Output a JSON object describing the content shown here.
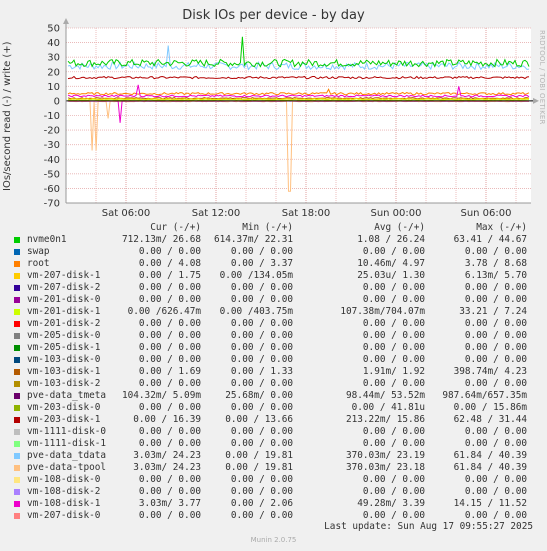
{
  "chart_data": {
    "type": "line",
    "title": "Disk IOs per device - by day",
    "ylabel": "IOs/second read (-) / write (+)",
    "ylim": [
      -70,
      50
    ],
    "yticks": [
      50,
      40,
      30,
      20,
      10,
      0,
      -10,
      -20,
      -30,
      -40,
      -50,
      -60,
      -70
    ],
    "xticks": [
      "Sat 06:00",
      "Sat 12:00",
      "Sat 18:00",
      "Sun 00:00",
      "Sun 06:00"
    ],
    "grid": true,
    "legend_placement": "bottom",
    "columns": [
      "Cur (-/+)",
      "Min (-/+)",
      "Avg (-/+)",
      "Max (-/+)"
    ],
    "series": [
      {
        "name": "nvme0n1",
        "color": "#00cc00",
        "cur": "712.13m/ 26.68",
        "min": "614.37m/ 22.31",
        "avg": "1.08 / 26.24",
        "max": "63.41 / 44.67"
      },
      {
        "name": "swap",
        "color": "#0066b3",
        "cur": "0.00 / 0.00",
        "min": "0.00 / 0.00",
        "avg": "0.00 / 0.00",
        "max": "0.00 / 0.00"
      },
      {
        "name": "root",
        "color": "#ff8000",
        "cur": "0.00 / 4.08",
        "min": "0.00 / 3.37",
        "avg": "10.46m/ 4.97",
        "max": "3.78 / 8.68"
      },
      {
        "name": "vm-207-disk-1",
        "color": "#ffcc00",
        "cur": "0.00 / 1.75",
        "min": "0.00 /134.05m",
        "avg": "25.03u/ 1.30",
        "max": "6.13m/ 5.70"
      },
      {
        "name": "vm-207-disk-2",
        "color": "#330099",
        "cur": "0.00 / 0.00",
        "min": "0.00 / 0.00",
        "avg": "0.00 / 0.00",
        "max": "0.00 / 0.00"
      },
      {
        "name": "vm-201-disk-0",
        "color": "#990099",
        "cur": "0.00 / 0.00",
        "min": "0.00 / 0.00",
        "avg": "0.00 / 0.00",
        "max": "0.00 / 0.00"
      },
      {
        "name": "vm-201-disk-1",
        "color": "#ccff00",
        "cur": "0.00 /626.47m",
        "min": "0.00 /403.75m",
        "avg": "107.38m/704.07m",
        "max": "33.21 / 7.24"
      },
      {
        "name": "vm-201-disk-2",
        "color": "#ff0000",
        "cur": "0.00 / 0.00",
        "min": "0.00 / 0.00",
        "avg": "0.00 / 0.00",
        "max": "0.00 / 0.00"
      },
      {
        "name": "vm-205-disk-0",
        "color": "#808080",
        "cur": "0.00 / 0.00",
        "min": "0.00 / 0.00",
        "avg": "0.00 / 0.00",
        "max": "0.00 / 0.00"
      },
      {
        "name": "vm-205-disk-1",
        "color": "#008f00",
        "cur": "0.00 / 0.00",
        "min": "0.00 / 0.00",
        "avg": "0.00 / 0.00",
        "max": "0.00 / 0.00"
      },
      {
        "name": "vm-103-disk-0",
        "color": "#00487d",
        "cur": "0.00 / 0.00",
        "min": "0.00 / 0.00",
        "avg": "0.00 / 0.00",
        "max": "0.00 / 0.00"
      },
      {
        "name": "vm-103-disk-1",
        "color": "#b35a00",
        "cur": "0.00 / 1.69",
        "min": "0.00 / 1.33",
        "avg": "1.91m/ 1.92",
        "max": "398.74m/ 4.23"
      },
      {
        "name": "vm-103-disk-2",
        "color": "#b38f00",
        "cur": "0.00 / 0.00",
        "min": "0.00 / 0.00",
        "avg": "0.00 / 0.00",
        "max": "0.00 / 0.00"
      },
      {
        "name": "pve-data_tmeta",
        "color": "#6b006b",
        "cur": "104.32m/ 5.09m",
        "min": "25.68m/ 0.00",
        "avg": "98.44m/ 53.52m",
        "max": "987.64m/657.35m"
      },
      {
        "name": "vm-203-disk-0",
        "color": "#8fb300",
        "cur": "0.00 / 0.00",
        "min": "0.00 / 0.00",
        "avg": "0.00 / 41.81u",
        "max": "0.00 / 15.86m"
      },
      {
        "name": "vm-203-disk-1",
        "color": "#b30000",
        "cur": "0.00 / 16.39",
        "min": "0.00 / 13.66",
        "avg": "213.22m/ 15.86",
        "max": "62.48 / 31.44"
      },
      {
        "name": "vm-1111-disk-0",
        "color": "#bebebe",
        "cur": "0.00 / 0.00",
        "min": "0.00 / 0.00",
        "avg": "0.00 / 0.00",
        "max": "0.00 / 0.00"
      },
      {
        "name": "vm-1111-disk-1",
        "color": "#80ff80",
        "cur": "0.00 / 0.00",
        "min": "0.00 / 0.00",
        "avg": "0.00 / 0.00",
        "max": "0.00 / 0.00"
      },
      {
        "name": "pve-data_tdata",
        "color": "#80c9ff",
        "cur": "3.03m/ 24.23",
        "min": "0.00 / 19.81",
        "avg": "370.03m/ 23.19",
        "max": "61.84 / 40.39"
      },
      {
        "name": "pve-data-tpool",
        "color": "#ffc080",
        "cur": "3.03m/ 24.23",
        "min": "0.00 / 19.81",
        "avg": "370.03m/ 23.18",
        "max": "61.84 / 40.39"
      },
      {
        "name": "vm-108-disk-0",
        "color": "#ffe680",
        "cur": "0.00 / 0.00",
        "min": "0.00 / 0.00",
        "avg": "0.00 / 0.00",
        "max": "0.00 / 0.00"
      },
      {
        "name": "vm-108-disk-2",
        "color": "#aa80ff",
        "cur": "0.00 / 0.00",
        "min": "0.00 / 0.00",
        "avg": "0.00 / 0.00",
        "max": "0.00 / 0.00"
      },
      {
        "name": "vm-108-disk-1",
        "color": "#ee00cc",
        "cur": "3.03m/ 3.77",
        "min": "0.00 / 2.06",
        "avg": "49.28m/ 3.39",
        "max": "14.15 / 11.52"
      },
      {
        "name": "vm-207-disk-0",
        "color": "#ff8080",
        "cur": "0.00 / 0.00",
        "min": "0.00 / 0.00",
        "avg": "0.00 / 0.00",
        "max": "0.00 / 0.00"
      }
    ]
  },
  "footer": "Last update: Sun Aug 17 09:55:27 2025",
  "generator": "Munin 2.0.75",
  "watermark": "RRDTOOL / TOBI OETIKER"
}
